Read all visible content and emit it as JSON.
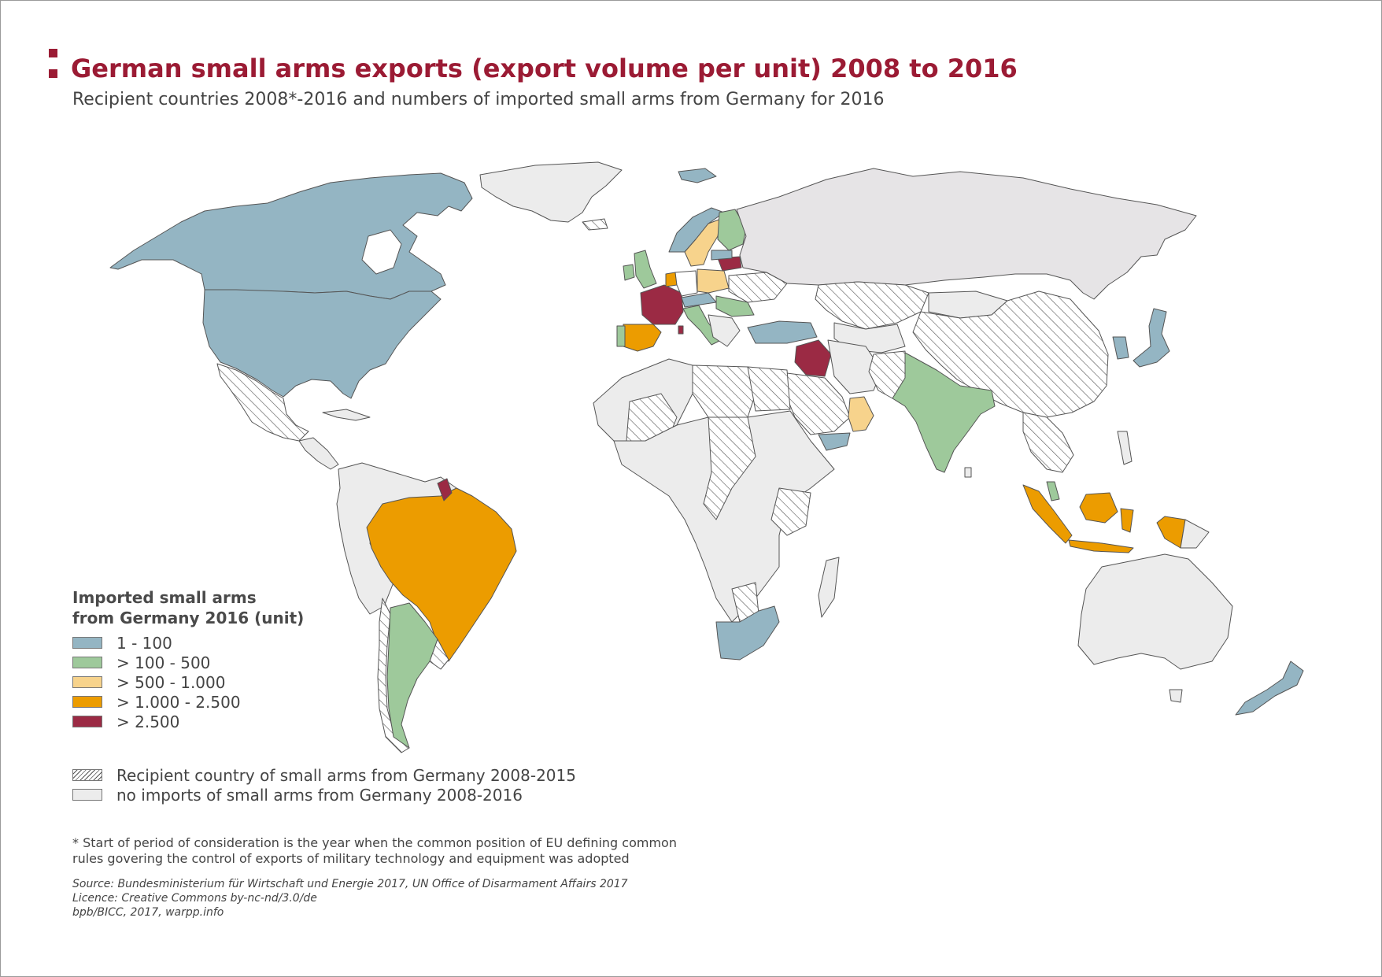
{
  "header": {
    "title": "German small arms exports (export volume per unit) 2008 to 2016",
    "subtitle": "Recipient countries 2008*-2016 and numbers of imported small arms from Germany for 2016"
  },
  "legend": {
    "title_line1": "Imported small arms",
    "title_line2": "from Germany 2016 (unit)",
    "classes": [
      {
        "label": "1 - 100",
        "color": "#94b5c3"
      },
      {
        "label": "> 100 - 500",
        "color": "#9ec99b"
      },
      {
        "label": "> 500 - 1.000",
        "color": "#f7d38c"
      },
      {
        "label": "> 1.000 - 2.500",
        "color": "#ec9c00"
      },
      {
        "label": "> 2.500",
        "color": "#9b2a44"
      }
    ],
    "recipient_2008_2015": "Recipient country of small arms from Germany 2008-2015",
    "no_imports": "no imports of small arms from Germany 2008-2016"
  },
  "colors": {
    "title": "#9b1b34",
    "no_imports_fill": "#ececec",
    "border": "#555555"
  },
  "footnote_line1": "* Start of period of consideration is the year when the common position of EU defining common",
  "footnote_line2": "rules govering the control of exports of military technology and equipment was adopted",
  "source": {
    "line1": "Source: Bundesministerium für Wirtschaft und Energie 2017, UN Office of Disarmament Affairs 2017",
    "line2": "Licence: Creative Commons by-nc-nd/3.0/de",
    "line3": "bpb/BICC, 2017, warpp.info"
  }
}
